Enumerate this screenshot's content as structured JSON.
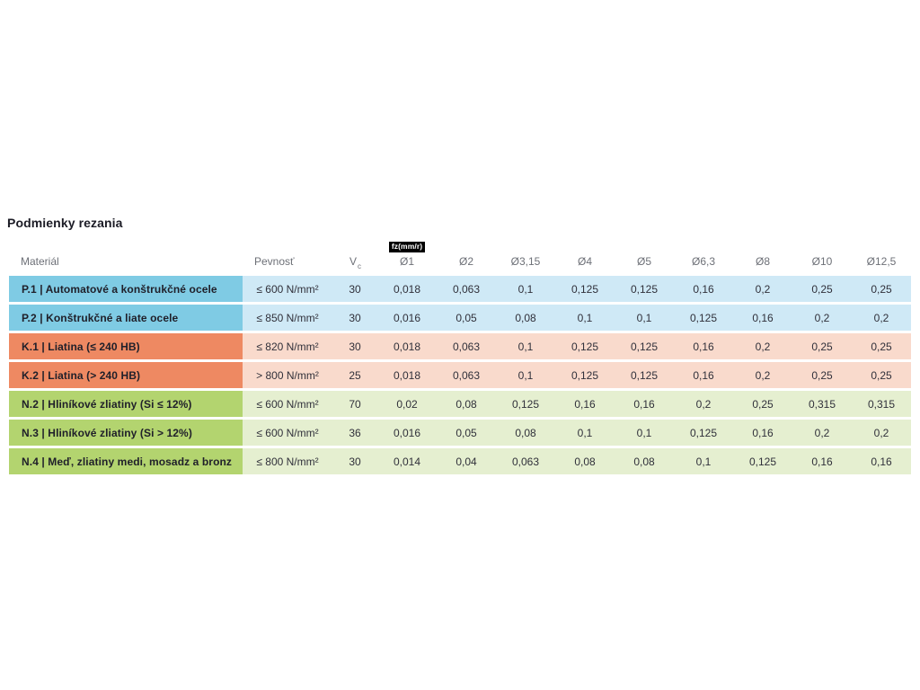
{
  "page": {
    "background": "#ffffff"
  },
  "title": "Podmienky rezania",
  "table": {
    "fz_badge": "fz(mm/r)",
    "columns": {
      "material": "Materiál",
      "pevnost": "Pevnosť",
      "vc_main": "V",
      "vc_sub": "c",
      "diameters": [
        "Ø1",
        "Ø2",
        "Ø3,15",
        "Ø4",
        "Ø5",
        "Ø6,3",
        "Ø8",
        "Ø10",
        "Ø12,5"
      ]
    },
    "group_colors": {
      "P": {
        "dark": "#7FCBE4",
        "light": "#CFE9F6"
      },
      "K": {
        "dark": "#EE8962",
        "light": "#F9DACC"
      },
      "N": {
        "dark": "#B3D46F",
        "light": "#E5EFD0"
      }
    },
    "rows": [
      {
        "group": "P",
        "material": "P.1 | Automatové a konštrukčné ocele",
        "pevnost": "≤ 600 N/mm²",
        "vc": "30",
        "values": [
          "0,018",
          "0,063",
          "0,1",
          "0,125",
          "0,125",
          "0,16",
          "0,2",
          "0,25",
          "0,25"
        ]
      },
      {
        "group": "P",
        "material": "P.2 | Konštrukčné a liate ocele",
        "pevnost": "≤ 850 N/mm²",
        "vc": "30",
        "values": [
          "0,016",
          "0,05",
          "0,08",
          "0,1",
          "0,1",
          "0,125",
          "0,16",
          "0,2",
          "0,2"
        ]
      },
      {
        "group": "K",
        "material": "K.1 | Liatina (≤ 240 HB)",
        "pevnost": "≤ 820 N/mm²",
        "vc": "30",
        "values": [
          "0,018",
          "0,063",
          "0,1",
          "0,125",
          "0,125",
          "0,16",
          "0,2",
          "0,25",
          "0,25"
        ]
      },
      {
        "group": "K",
        "material": "K.2 | Liatina (> 240 HB)",
        "pevnost": "> 800 N/mm²",
        "vc": "25",
        "values": [
          "0,018",
          "0,063",
          "0,1",
          "0,125",
          "0,125",
          "0,16",
          "0,2",
          "0,25",
          "0,25"
        ]
      },
      {
        "group": "N",
        "material": "N.2 | Hliníkové zliatiny (Si ≤ 12%)",
        "pevnost": "≤ 600 N/mm²",
        "vc": "70",
        "values": [
          "0,02",
          "0,08",
          "0,125",
          "0,16",
          "0,16",
          "0,2",
          "0,25",
          "0,315",
          "0,315"
        ]
      },
      {
        "group": "N",
        "material": "N.3 | Hliníkové zliatiny (Si > 12%)",
        "pevnost": "≤ 600 N/mm²",
        "vc": "36",
        "values": [
          "0,016",
          "0,05",
          "0,08",
          "0,1",
          "0,1",
          "0,125",
          "0,16",
          "0,2",
          "0,2"
        ]
      },
      {
        "group": "N",
        "material": "N.4 | Meď, zliatiny medi, mosadz a bronz",
        "pevnost": "≤ 800 N/mm²",
        "vc": "30",
        "values": [
          "0,014",
          "0,04",
          "0,063",
          "0,08",
          "0,08",
          "0,1",
          "0,125",
          "0,16",
          "0,16"
        ]
      }
    ]
  }
}
